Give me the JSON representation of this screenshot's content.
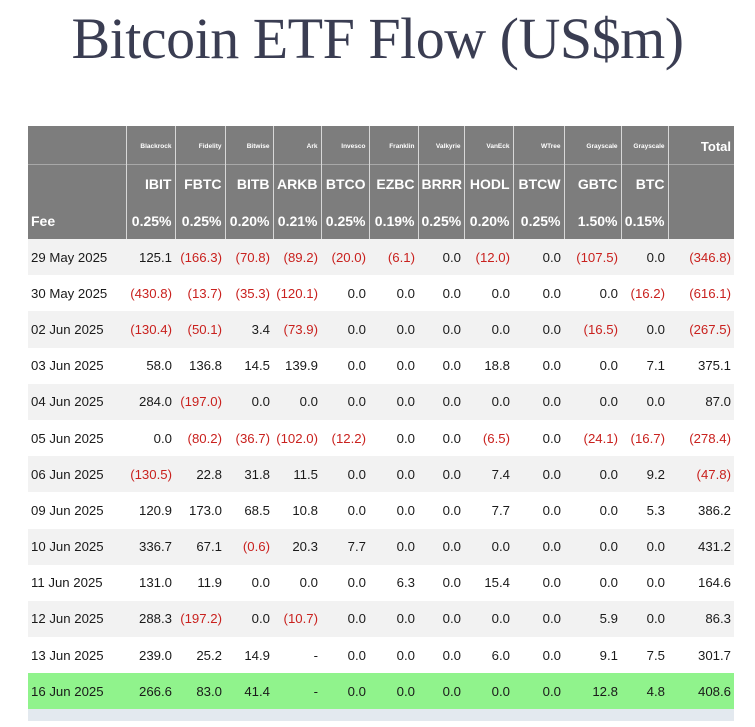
{
  "title": "Bitcoin ETF Flow (US$m)",
  "chart_data": {
    "type": "table",
    "title": "Bitcoin ETF Flow (US$m)",
    "fee_label": "Fee",
    "total_label": "Total",
    "columns": [
      {
        "issuer": "Blackrock",
        "ticker": "IBIT",
        "fee": "0.25%"
      },
      {
        "issuer": "Fidelity",
        "ticker": "FBTC",
        "fee": "0.25%"
      },
      {
        "issuer": "Bitwise",
        "ticker": "BITB",
        "fee": "0.20%"
      },
      {
        "issuer": "Ark",
        "ticker": "ARKB",
        "fee": "0.21%"
      },
      {
        "issuer": "Invesco",
        "ticker": "BTCO",
        "fee": "0.25%"
      },
      {
        "issuer": "Franklin",
        "ticker": "EZBC",
        "fee": "0.19%"
      },
      {
        "issuer": "Valkyrie",
        "ticker": "BRRR",
        "fee": "0.25%"
      },
      {
        "issuer": "VanEck",
        "ticker": "HODL",
        "fee": "0.20%"
      },
      {
        "issuer": "WTree",
        "ticker": "BTCW",
        "fee": "0.25%"
      },
      {
        "issuer": "Grayscale",
        "ticker": "GBTC",
        "fee": "1.50%"
      },
      {
        "issuer": "Grayscale",
        "ticker": "BTC",
        "fee": "0.15%"
      }
    ],
    "rows": [
      {
        "date": "29 May 2025",
        "values": [
          "125.1",
          "(166.3)",
          "(70.8)",
          "(89.2)",
          "(20.0)",
          "(6.1)",
          "0.0",
          "(12.0)",
          "0.0",
          "(107.5)",
          "0.0"
        ],
        "total": "(346.8)"
      },
      {
        "date": "30 May 2025",
        "values": [
          "(430.8)",
          "(13.7)",
          "(35.3)",
          "(120.1)",
          "0.0",
          "0.0",
          "0.0",
          "0.0",
          "0.0",
          "0.0",
          "(16.2)"
        ],
        "total": "(616.1)"
      },
      {
        "date": "02 Jun 2025",
        "values": [
          "(130.4)",
          "(50.1)",
          "3.4",
          "(73.9)",
          "0.0",
          "0.0",
          "0.0",
          "0.0",
          "0.0",
          "(16.5)",
          "0.0"
        ],
        "total": "(267.5)"
      },
      {
        "date": "03 Jun 2025",
        "values": [
          "58.0",
          "136.8",
          "14.5",
          "139.9",
          "0.0",
          "0.0",
          "0.0",
          "18.8",
          "0.0",
          "0.0",
          "7.1"
        ],
        "total": "375.1"
      },
      {
        "date": "04 Jun 2025",
        "values": [
          "284.0",
          "(197.0)",
          "0.0",
          "0.0",
          "0.0",
          "0.0",
          "0.0",
          "0.0",
          "0.0",
          "0.0",
          "0.0"
        ],
        "total": "87.0"
      },
      {
        "date": "05 Jun 2025",
        "values": [
          "0.0",
          "(80.2)",
          "(36.7)",
          "(102.0)",
          "(12.2)",
          "0.0",
          "0.0",
          "(6.5)",
          "0.0",
          "(24.1)",
          "(16.7)"
        ],
        "total": "(278.4)"
      },
      {
        "date": "06 Jun 2025",
        "values": [
          "(130.5)",
          "22.8",
          "31.8",
          "11.5",
          "0.0",
          "0.0",
          "0.0",
          "7.4",
          "0.0",
          "0.0",
          "9.2"
        ],
        "total": "(47.8)"
      },
      {
        "date": "09 Jun 2025",
        "values": [
          "120.9",
          "173.0",
          "68.5",
          "10.8",
          "0.0",
          "0.0",
          "0.0",
          "7.7",
          "0.0",
          "0.0",
          "5.3"
        ],
        "total": "386.2"
      },
      {
        "date": "10 Jun 2025",
        "values": [
          "336.7",
          "67.1",
          "(0.6)",
          "20.3",
          "7.7",
          "0.0",
          "0.0",
          "0.0",
          "0.0",
          "0.0",
          "0.0"
        ],
        "total": "431.2"
      },
      {
        "date": "11 Jun 2025",
        "values": [
          "131.0",
          "11.9",
          "0.0",
          "0.0",
          "0.0",
          "6.3",
          "0.0",
          "15.4",
          "0.0",
          "0.0",
          "0.0"
        ],
        "total": "164.6"
      },
      {
        "date": "12 Jun 2025",
        "values": [
          "288.3",
          "(197.2)",
          "0.0",
          "(10.7)",
          "0.0",
          "0.0",
          "0.0",
          "0.0",
          "0.0",
          "5.9",
          "0.0"
        ],
        "total": "86.3"
      },
      {
        "date": "13 Jun 2025",
        "values": [
          "239.0",
          "25.2",
          "14.9",
          "-",
          "0.0",
          "0.0",
          "0.0",
          "6.0",
          "0.0",
          "9.1",
          "7.5"
        ],
        "total": "301.7"
      },
      {
        "date": "16 Jun 2025",
        "values": [
          "266.6",
          "83.0",
          "41.4",
          "-",
          "0.0",
          "0.0",
          "0.0",
          "0.0",
          "0.0",
          "12.8",
          "4.8"
        ],
        "total": "408.6"
      }
    ],
    "highlighted_row": "16 Jun 2025",
    "colors": {
      "header_bg": "#7d7d7d",
      "negative": "#c9211e",
      "highlight": "#90f38c",
      "title": "#3a3d52"
    }
  }
}
